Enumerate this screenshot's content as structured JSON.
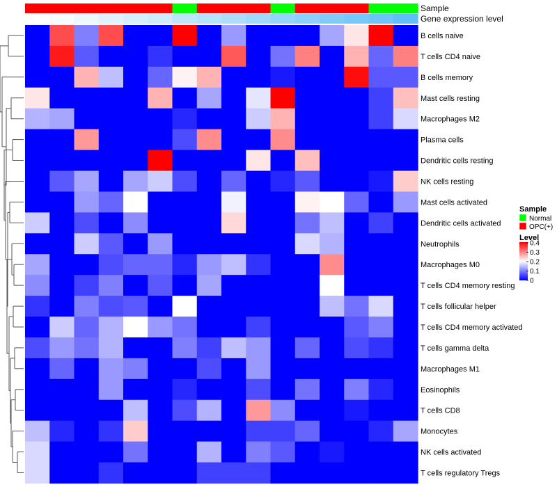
{
  "chart_data": {
    "type": "heatmap",
    "title": "",
    "annotation_labels": {
      "sample": "Sample",
      "gene": "Gene expression level"
    },
    "sample_groups": [
      "OPC(+)",
      "OPC(+)",
      "OPC(+)",
      "OPC(+)",
      "OPC(+)",
      "OPC(+)",
      "Normal",
      "OPC(+)",
      "OPC(+)",
      "OPC(+)",
      "Normal",
      "OPC(+)",
      "OPC(+)",
      "OPC(+)",
      "Normal",
      "Normal"
    ],
    "gene_expression_level": [
      0.0,
      0.03,
      0.06,
      0.1,
      0.13,
      0.16,
      0.2,
      0.23,
      0.26,
      0.3,
      0.33,
      0.36,
      0.4,
      0.43,
      0.46,
      0.5
    ],
    "rows": [
      "B cells naive",
      "T cells CD4 naive",
      "B cells memory",
      "Mast cells resting",
      "Macrophages M2",
      "Plasma cells",
      "Dendritic cells resting",
      "NK cells resting",
      "Mast cells activated",
      "Dendritic cells activated",
      "Neutrophils",
      "Macrophages M0",
      "T cells CD4 memory resting",
      "T cells follicular helper",
      "T cells CD4 memory activated",
      "T cells gamma delta",
      "Macrophages M1",
      "Eosinophils",
      "T cells CD8",
      "Monocytes",
      "NK cells activated",
      "T cells regulatory  Tregs"
    ],
    "values": [
      [
        0.0,
        0.34,
        0.1,
        0.34,
        0.0,
        0.0,
        0.4,
        0.0,
        0.12,
        0.0,
        0.0,
        0.0,
        0.13,
        0.22,
        0.4,
        0.0
      ],
      [
        0.0,
        0.38,
        0.07,
        0.0,
        0.0,
        0.04,
        0.0,
        0.0,
        0.33,
        0.0,
        0.09,
        0.3,
        0.0,
        0.26,
        0.08,
        0.3
      ],
      [
        0.0,
        0.0,
        0.26,
        0.15,
        0.0,
        0.08,
        0.21,
        0.26,
        0.0,
        0.0,
        0.02,
        0.0,
        0.0,
        0.39,
        0.07,
        0.07
      ],
      [
        0.22,
        0.0,
        0.0,
        0.0,
        0.0,
        0.26,
        0.0,
        0.13,
        0.0,
        0.18,
        0.4,
        0.0,
        0.0,
        0.0,
        0.05,
        0.25
      ],
      [
        0.14,
        0.13,
        0.0,
        0.0,
        0.0,
        0.0,
        0.03,
        0.0,
        0.0,
        0.16,
        0.26,
        0.0,
        0.0,
        0.0,
        0.05,
        0.17
      ],
      [
        0.0,
        0.0,
        0.28,
        0.0,
        0.0,
        0.0,
        0.06,
        0.29,
        0.0,
        0.0,
        0.29,
        0.0,
        0.0,
        0.0,
        0.0,
        0.0
      ],
      [
        0.0,
        0.0,
        0.0,
        0.0,
        0.0,
        0.4,
        0.0,
        0.0,
        0.0,
        0.22,
        0.0,
        0.25,
        0.0,
        0.0,
        0.0,
        0.0
      ],
      [
        0.0,
        0.07,
        0.13,
        0.0,
        0.13,
        0.16,
        0.06,
        0.0,
        0.08,
        0.0,
        0.03,
        0.07,
        0.0,
        0.0,
        0.02,
        0.24
      ],
      [
        0.0,
        0.0,
        0.12,
        0.08,
        0.2,
        0.0,
        0.0,
        0.0,
        0.19,
        0.0,
        0.0,
        0.21,
        0.2,
        0.08,
        0.0,
        0.12
      ],
      [
        0.16,
        0.0,
        0.06,
        0.0,
        0.11,
        0.0,
        0.0,
        0.0,
        0.23,
        0.0,
        0.0,
        0.09,
        0.15,
        0.0,
        0.05,
        0.0
      ],
      [
        0.0,
        0.0,
        0.16,
        0.07,
        0.0,
        0.12,
        0.0,
        0.0,
        0.0,
        0.0,
        0.0,
        0.17,
        0.14,
        0.0,
        0.0,
        0.0
      ],
      [
        0.13,
        0.0,
        0.0,
        0.06,
        0.08,
        0.08,
        0.03,
        0.12,
        0.15,
        0.04,
        0.0,
        0.0,
        0.29,
        0.0,
        0.0,
        0.0
      ],
      [
        0.11,
        0.0,
        0.05,
        0.1,
        0.0,
        0.07,
        0.0,
        0.13,
        0.0,
        0.0,
        0.0,
        0.0,
        0.2,
        0.0,
        0.0,
        0.0
      ],
      [
        0.04,
        0.0,
        0.1,
        0.06,
        0.07,
        0.0,
        0.2,
        0.0,
        0.0,
        0.0,
        0.0,
        0.0,
        0.15,
        0.09,
        0.17,
        0.0
      ],
      [
        0.0,
        0.16,
        0.08,
        0.14,
        0.2,
        0.12,
        0.09,
        0.0,
        0.0,
        0.05,
        0.0,
        0.0,
        0.0,
        0.07,
        0.1,
        0.0
      ],
      [
        0.06,
        0.12,
        0.09,
        0.14,
        0.0,
        0.0,
        0.1,
        0.05,
        0.15,
        0.12,
        0.0,
        0.08,
        0.0,
        0.06,
        0.04,
        0.0
      ],
      [
        0.0,
        0.08,
        0.0,
        0.12,
        0.1,
        0.0,
        0.0,
        0.06,
        0.0,
        0.12,
        0.0,
        0.0,
        0.0,
        0.0,
        0.0,
        0.0
      ],
      [
        0.0,
        0.0,
        0.0,
        0.12,
        0.0,
        0.0,
        0.03,
        0.0,
        0.0,
        0.06,
        0.0,
        0.09,
        0.0,
        0.1,
        0.03,
        0.0
      ],
      [
        0.0,
        0.0,
        0.0,
        0.0,
        0.15,
        0.0,
        0.06,
        0.14,
        0.0,
        0.28,
        0.11,
        0.0,
        0.0,
        0.02,
        0.0,
        0.0
      ],
      [
        0.15,
        0.03,
        0.0,
        0.04,
        0.24,
        0.0,
        0.0,
        0.0,
        0.0,
        0.05,
        0.05,
        0.08,
        0.0,
        0.0,
        0.03,
        0.13
      ],
      [
        0.17,
        0.0,
        0.0,
        0.0,
        0.09,
        0.0,
        0.0,
        0.14,
        0.0,
        0.1,
        0.07,
        0.0,
        0.02,
        0.0,
        0.0,
        0.0
      ],
      [
        0.17,
        0.0,
        0.0,
        0.04,
        0.0,
        0.0,
        0.0,
        0.05,
        0.05,
        0.05,
        0.0,
        0.0,
        0.0,
        0.0,
        0.0,
        0.0
      ]
    ],
    "color_scale": {
      "min": 0,
      "mid": 0.2,
      "max": 0.4,
      "low": "#0000ff",
      "midcolor": "#ffffff",
      "high": "#ff0000"
    },
    "gene_scale": {
      "low": "#ffffff",
      "high": "#5fbff9"
    },
    "legend": {
      "sample_title": "Sample",
      "sample_items": [
        {
          "label": "Normal",
          "color": "#00ff00"
        },
        {
          "label": "OPC(+)",
          "color": "#ff0000"
        }
      ],
      "level_title": "Level",
      "level_ticks": [
        "0.4",
        "0.3",
        "0.2",
        "0.1",
        "0"
      ],
      "level_tick_values": [
        0.4,
        0.3,
        0.2,
        0.1,
        0
      ]
    },
    "row_dendrogram": true
  }
}
